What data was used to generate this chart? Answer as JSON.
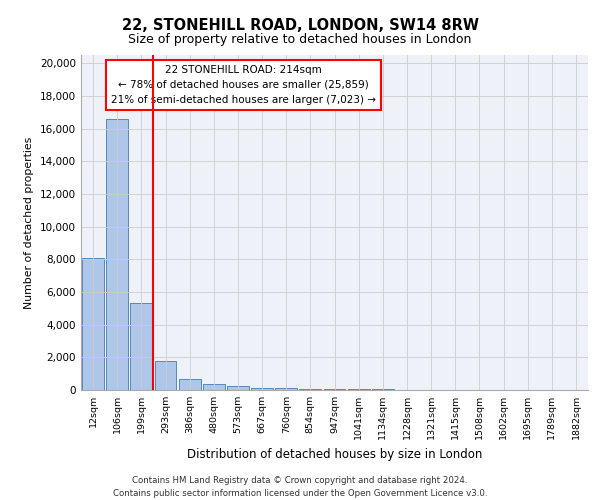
{
  "title": "22, STONEHILL ROAD, LONDON, SW14 8RW",
  "subtitle": "Size of property relative to detached houses in London",
  "xlabel": "Distribution of detached houses by size in London",
  "ylabel": "Number of detached properties",
  "annotation_title": "22 STONEHILL ROAD: 214sqm",
  "annotation_line1": "← 78% of detached houses are smaller (25,859)",
  "annotation_line2": "21% of semi-detached houses are larger (7,023) →",
  "footer_line1": "Contains HM Land Registry data © Crown copyright and database right 2024.",
  "footer_line2": "Contains public sector information licensed under the Open Government Licence v3.0.",
  "categories": [
    "12sqm",
    "106sqm",
    "199sqm",
    "293sqm",
    "386sqm",
    "480sqm",
    "573sqm",
    "667sqm",
    "760sqm",
    "854sqm",
    "947sqm",
    "1041sqm",
    "1134sqm",
    "1228sqm",
    "1321sqm",
    "1415sqm",
    "1508sqm",
    "1602sqm",
    "1695sqm",
    "1789sqm",
    "1882sqm"
  ],
  "values": [
    8100,
    16600,
    5300,
    1800,
    700,
    350,
    250,
    150,
    100,
    80,
    60,
    50,
    40,
    30,
    20,
    15,
    12,
    10,
    8,
    6,
    5
  ],
  "bar_color": "#aec6e8",
  "bar_edge_color": "#5588bb",
  "ylim": [
    0,
    20500
  ],
  "yticks": [
    0,
    2000,
    4000,
    6000,
    8000,
    10000,
    12000,
    14000,
    16000,
    18000,
    20000
  ],
  "background_color": "#ffffff",
  "plot_bg_color": "#eef2f8",
  "grid_color": "#cccccc"
}
